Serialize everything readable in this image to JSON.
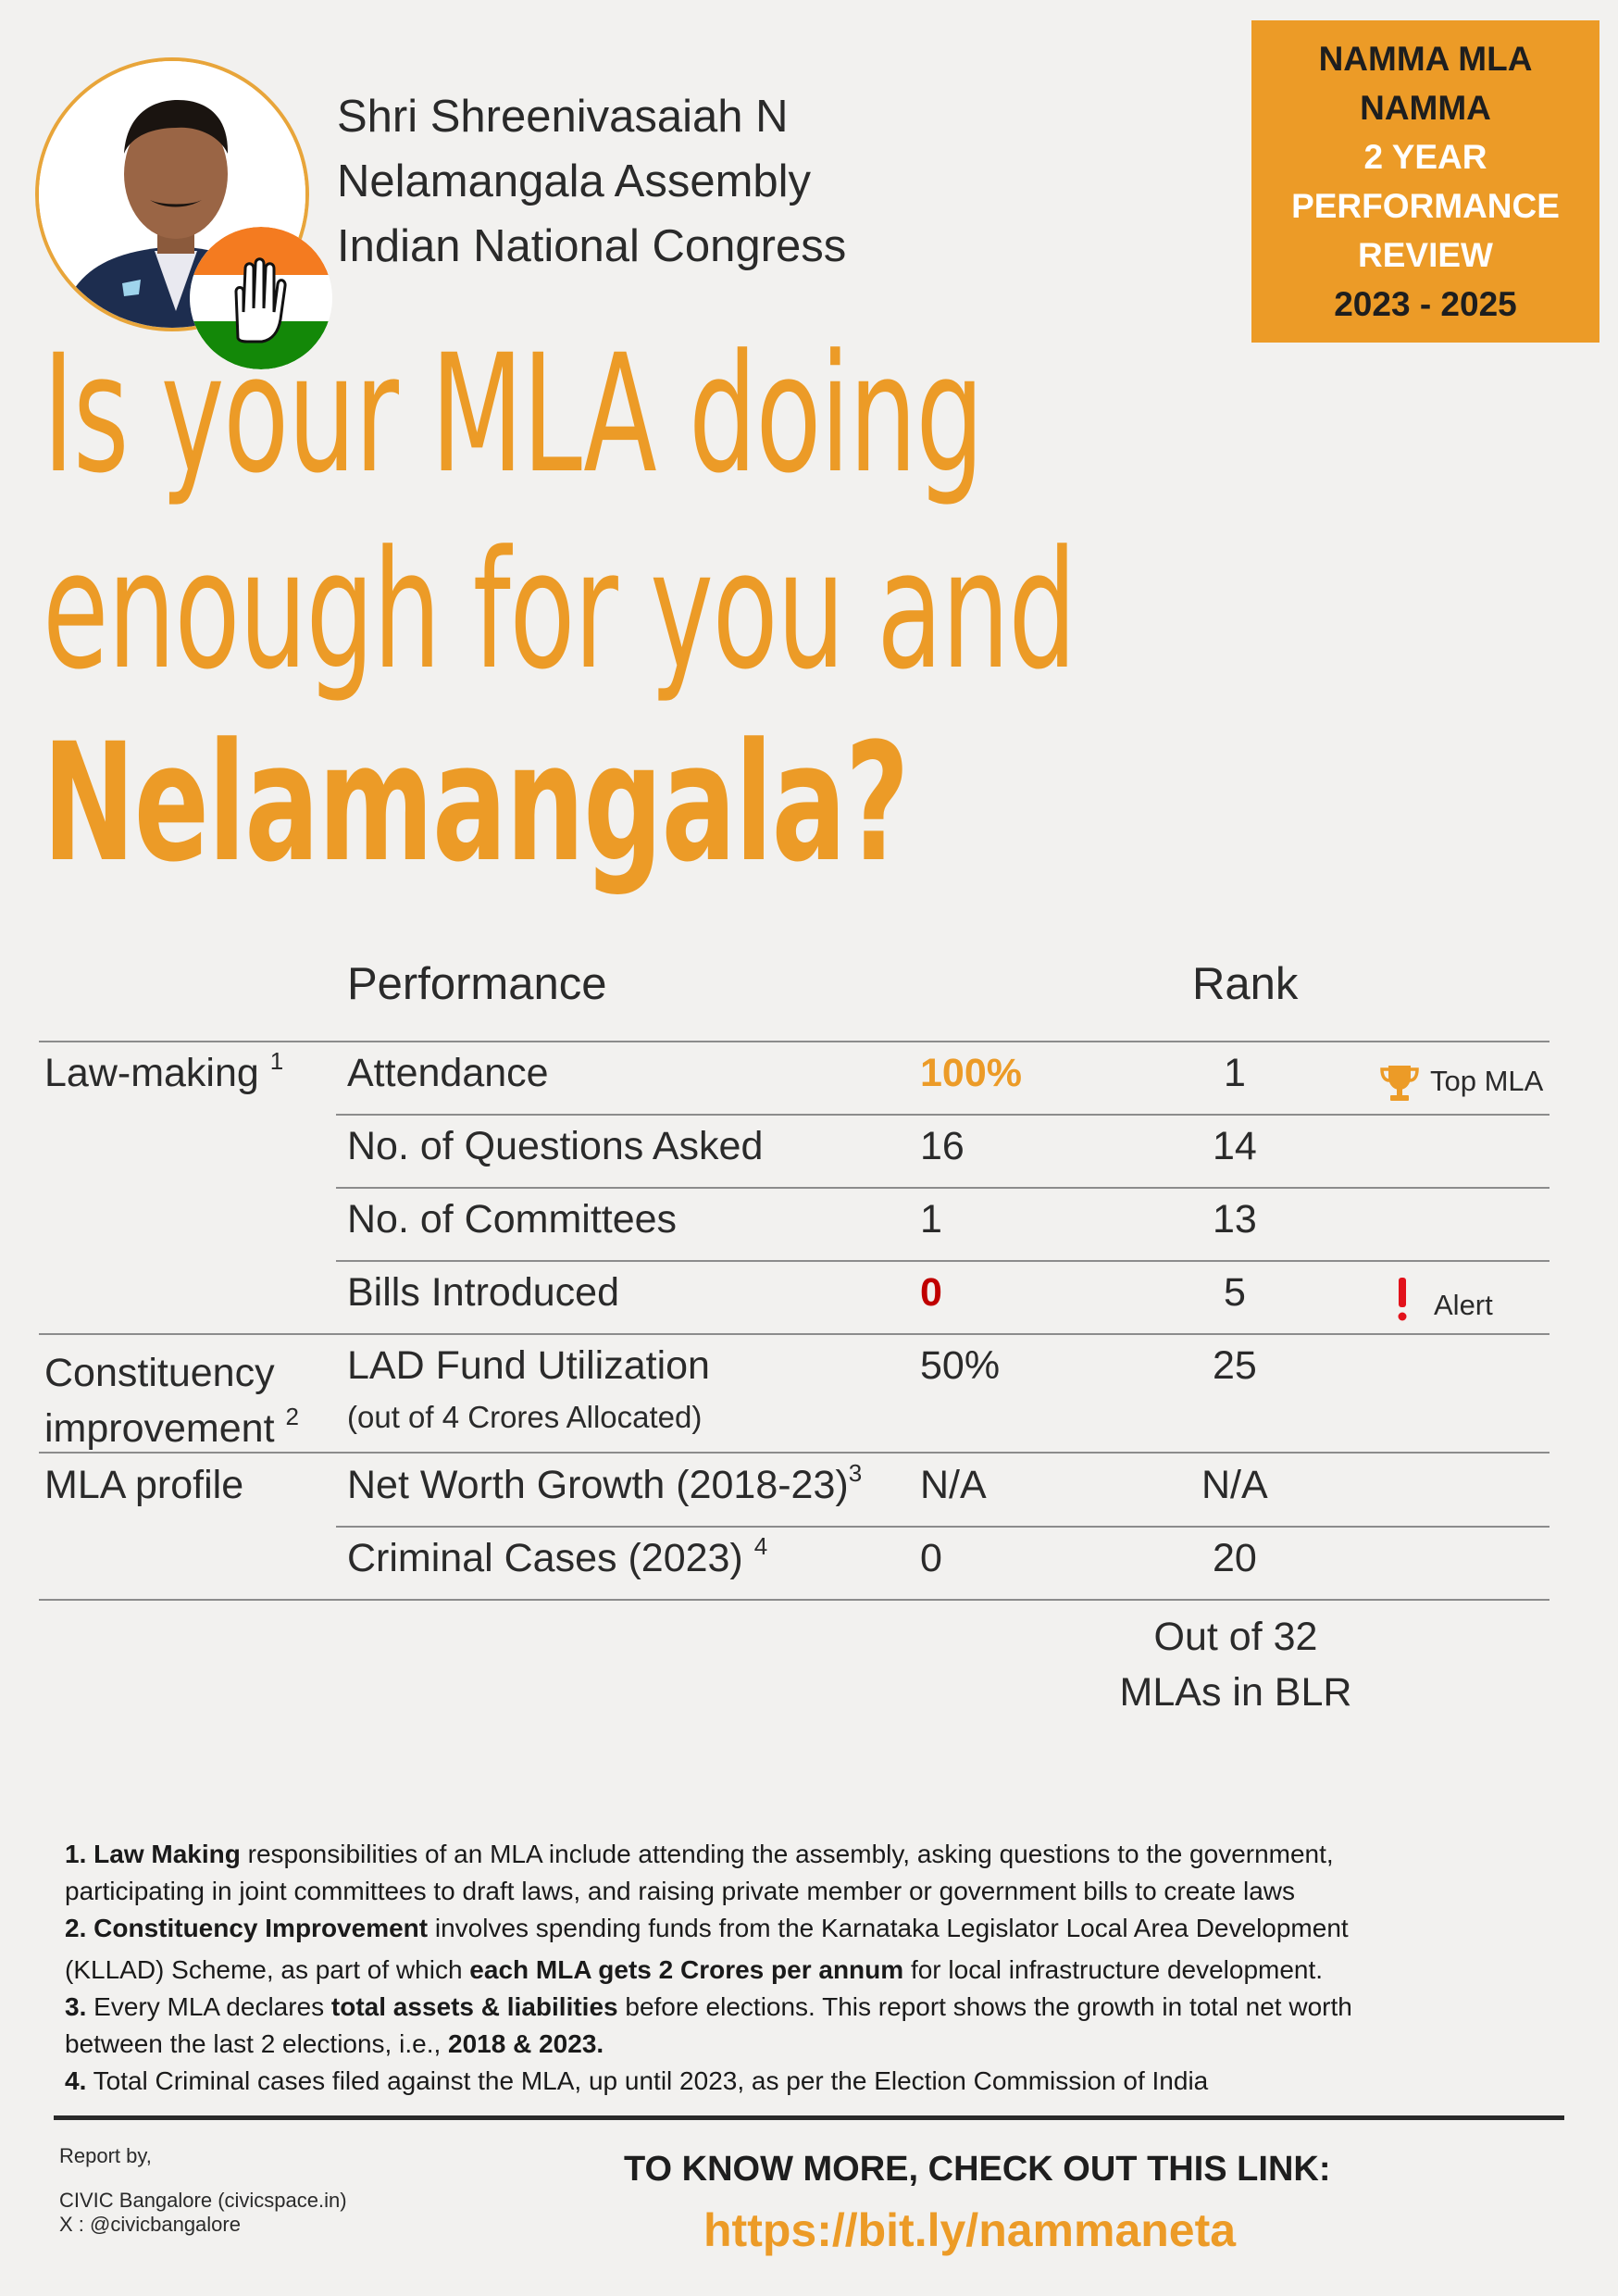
{
  "mla": {
    "name": "Shri Shreenivasaiah N",
    "constituency": "Nelamangala Assembly",
    "party": "Indian National Congress"
  },
  "review_box": {
    "line1": "NAMMA MLA",
    "line2": "NAMMA",
    "line3": "2 YEAR",
    "line4": "PERFORMANCE",
    "line5": "REVIEW",
    "line6": "2023 - 2025"
  },
  "headline": {
    "line1": "Is your MLA doing",
    "line2": "enough for you and",
    "line3": "Nelamangala?"
  },
  "table": {
    "header_performance": "Performance",
    "header_rank": "Rank",
    "sections": {
      "law_making": "Law-making",
      "law_making_note": "1",
      "constituency_line1": "Constituency",
      "constituency_line2": "improvement",
      "constituency_note": "2",
      "mla_profile": "MLA profile"
    },
    "rows": [
      {
        "metric": "Attendance",
        "value": "100%",
        "rank": "1"
      },
      {
        "metric": "No. of Questions Asked",
        "value": "16",
        "rank": "14"
      },
      {
        "metric": "No. of Committees",
        "value": "1",
        "rank": "13"
      },
      {
        "metric": "Bills Introduced",
        "value": "0",
        "rank": "5"
      },
      {
        "metric": "LAD Fund Utilization",
        "sub": "(out of 4 Crores Allocated)",
        "value": "50%",
        "rank": "25"
      },
      {
        "metric": "Net Worth Growth (2018-23)",
        "note": "3",
        "value": "N/A",
        "rank": "N/A"
      },
      {
        "metric": "Criminal Cases (2023)",
        "note": "4",
        "value": "0",
        "rank": "20"
      }
    ],
    "top_badge": "Top MLA",
    "alert_badge": "Alert",
    "rank_footer_line1": "Out of 32",
    "rank_footer_line2": "MLAs in BLR"
  },
  "footnotes": {
    "f1_num": "1.",
    "f1_bold": "Law Making",
    "f1_text_a": " responsibilities of an MLA include attending the assembly, asking questions to the government,",
    "f1_text_b": "participating in joint committees to draft laws, and raising private member or government bills to create laws",
    "f2_num": "2.",
    "f2_bold": "Constituency Improvement",
    "f2_text_a": " involves spending funds from the Karnataka Legislator Local Area Development",
    "f2_text_b": "(KLLAD) Scheme, as part of which ",
    "f2_bold_b": "each MLA gets 2 Crores per annum",
    "f2_text_c": " for local infrastructure development.",
    "f3_num": "3.",
    "f3_text_a": " Every MLA declares ",
    "f3_bold": "total assets & liabilities",
    "f3_text_b": " before elections. This report shows the growth in total net worth",
    "f3_text_c": "between the last 2 elections, i.e., ",
    "f3_bold_b": "2018 & 2023.",
    "f4_num": "4.",
    "f4_text": " Total Criminal cases filed against the MLA, up until 2023, as per the Election Commission of India"
  },
  "footer": {
    "report_by": "Report by,",
    "org": "CIVIC Bangalore (civicspace.in)",
    "twitter": "X : @civicbangalore",
    "cta": "TO KNOW MORE, CHECK OUT THIS LINK:",
    "link": "https://bit.ly/nammaneta"
  },
  "colors": {
    "accent": "#ec9b27",
    "alert": "#c00000",
    "background": "#f2f1ef"
  }
}
